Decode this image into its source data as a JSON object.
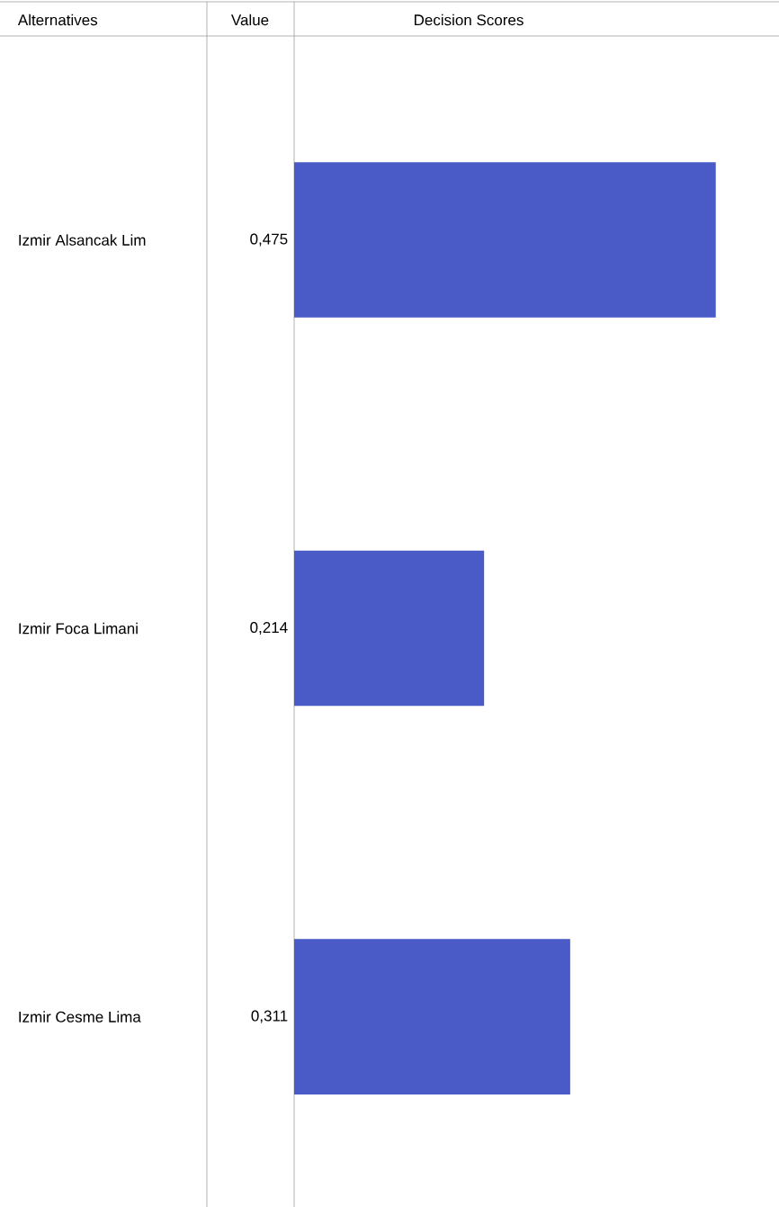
{
  "chart_data": {
    "type": "bar",
    "orientation": "horizontal",
    "title": "Decision Scores",
    "ylabel": "Alternatives",
    "annotations": [
      "Value"
    ],
    "categories": [
      "Izmir Alsancak Lim",
      "Izmir Foca Limani",
      "Izmir Cesme Lima"
    ],
    "values": [
      0.475,
      0.214,
      0.311
    ],
    "value_labels": [
      "0,475",
      "0,214",
      "0,311"
    ],
    "color": "#4a5bc8"
  }
}
